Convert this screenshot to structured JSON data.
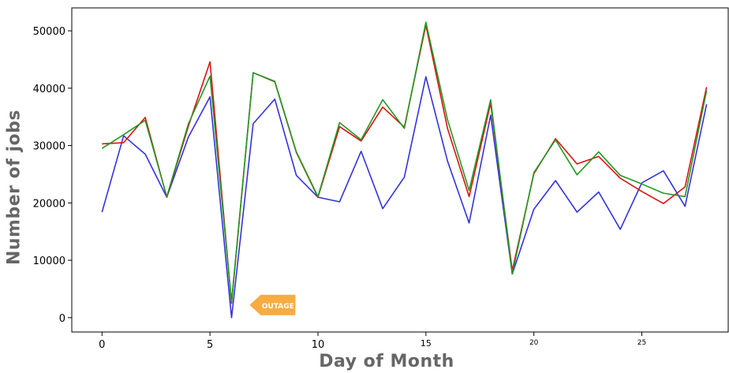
{
  "chart_data": {
    "type": "line",
    "xlabel": "Day of Month",
    "ylabel": "Number of jobs",
    "xlim": [
      -1.4,
      29
    ],
    "ylim": [
      -2500,
      54000
    ],
    "x_ticks": [
      0,
      5,
      10,
      15,
      20,
      25
    ],
    "x_tick_labels": [
      "0",
      "5",
      "10",
      "15",
      "20",
      "25"
    ],
    "y_ticks": [
      0,
      10000,
      20000,
      30000,
      40000,
      50000
    ],
    "y_tick_labels": [
      "0",
      "10000",
      "20000",
      "30000",
      "40000",
      "50000"
    ],
    "grid": false,
    "x": [
      0,
      1,
      2,
      3,
      4,
      5,
      6,
      7,
      8,
      9,
      10,
      11,
      12,
      13,
      14,
      15,
      16,
      17,
      18,
      19,
      20,
      21,
      22,
      23,
      24,
      25,
      26,
      27,
      28
    ],
    "series": [
      {
        "color": "#3333dd",
        "values": [
          18400,
          31700,
          28500,
          21000,
          31500,
          38500,
          0,
          33800,
          38100,
          24800,
          21000,
          20200,
          29000,
          19000,
          24500,
          42000,
          27300,
          16500,
          35300,
          7600,
          18900,
          23900,
          18400,
          21900,
          15400,
          23500,
          25600,
          19400,
          37200
        ]
      },
      {
        "color": "#dd1111",
        "values": [
          30300,
          30500,
          34900,
          21000,
          33400,
          44600,
          2500,
          42700,
          41100,
          28800,
          21000,
          33300,
          30800,
          36700,
          33200,
          51000,
          33000,
          21100,
          37400,
          8200,
          25100,
          31200,
          26800,
          28100,
          24300,
          22000,
          19900,
          22800,
          40200
        ]
      },
      {
        "color": "#229922",
        "values": [
          29500,
          31900,
          34400,
          21100,
          33800,
          42100,
          2800,
          42700,
          41200,
          28900,
          21100,
          34000,
          31000,
          38000,
          33000,
          51500,
          34500,
          22200,
          38000,
          7600,
          25300,
          31000,
          24900,
          28900,
          24800,
          23300,
          21700,
          21100,
          39600
        ]
      }
    ],
    "annotations": [
      {
        "text": "OUTAGE",
        "x": 7.2,
        "y": 2200,
        "color": "#f7ac43",
        "text_color": "#ffffff"
      }
    ]
  }
}
